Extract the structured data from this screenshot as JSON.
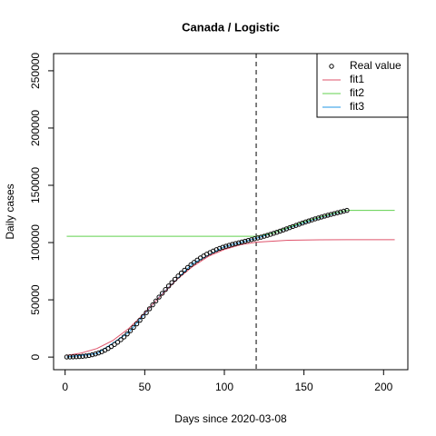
{
  "chart_data": {
    "type": "scatter",
    "title": "Canada / Logistic",
    "xlabel": "Days since 2020-03-08",
    "ylabel": "Daily cases",
    "xlim": [
      -7.24,
      215.24
    ],
    "ylim": [
      -11000,
      265000
    ],
    "xticks": [
      0,
      50,
      100,
      150,
      200
    ],
    "yticks": [
      0,
      50000,
      100000,
      150000,
      200000,
      250000
    ],
    "vline": 120,
    "legend": "top-right",
    "series": [
      {
        "name": "Real value",
        "kind": "points",
        "color": "#000000",
        "x": [
          1,
          3,
          5,
          7,
          9,
          11,
          13,
          15,
          17,
          19,
          21,
          23,
          25,
          27,
          29,
          31,
          33,
          35,
          37,
          39,
          41,
          43,
          45,
          47,
          49,
          51,
          53,
          55,
          57,
          59,
          61,
          63,
          65,
          67,
          69,
          71,
          73,
          75,
          77,
          79,
          81,
          83,
          85,
          87,
          89,
          91,
          93,
          95,
          97,
          99,
          101,
          103,
          105,
          107,
          109,
          111,
          113,
          115,
          117,
          119,
          121,
          123,
          125,
          127,
          129,
          131,
          133,
          135,
          137,
          139,
          141,
          143,
          145,
          147,
          149,
          151,
          153,
          155,
          157,
          159,
          161,
          163,
          165,
          167,
          169,
          171,
          173,
          175,
          177
        ],
        "values": [
          100,
          150,
          200,
          300,
          450,
          700,
          1000,
          1400,
          2000,
          2700,
          3600,
          4700,
          6000,
          7500,
          9200,
          11000,
          13000,
          15200,
          17600,
          20200,
          23000,
          26000,
          29000,
          32200,
          35500,
          38800,
          42200,
          45600,
          49000,
          52400,
          55700,
          59000,
          62100,
          65100,
          68000,
          70800,
          73400,
          75900,
          78300,
          80600,
          82700,
          84700,
          86600,
          88300,
          89900,
          91300,
          92600,
          93800,
          94900,
          95900,
          96800,
          97600,
          98400,
          99100,
          99800,
          100500,
          101200,
          101900,
          102600,
          103300,
          104000,
          104700,
          105500,
          106300,
          107200,
          108100,
          109000,
          110000,
          111000,
          112000,
          113000,
          114000,
          115000,
          116000,
          117000,
          118000,
          118900,
          119800,
          120700,
          121500,
          122300,
          123100,
          123900,
          124600,
          125300,
          126000,
          126700,
          127400,
          128100
        ]
      },
      {
        "name": "fit1",
        "kind": "line",
        "color": "#DF536B",
        "x": [
          1,
          10,
          20,
          30,
          40,
          50,
          60,
          70,
          80,
          90,
          100,
          110,
          120,
          140,
          160,
          180,
          207
        ],
        "values": [
          1500,
          3500,
          7500,
          14500,
          25000,
          38500,
          53500,
          67500,
          79000,
          88000,
          94000,
          98000,
          100300,
          102000,
          102400,
          102500,
          102500
        ]
      },
      {
        "name": "fit2",
        "kind": "line",
        "color": "#61D04F",
        "x": [
          1,
          120,
          130,
          140,
          150,
          160,
          170,
          177,
          207
        ],
        "values": [
          105500,
          105500,
          108000,
          113000,
          118000,
          122300,
          126000,
          128100,
          128100
        ]
      },
      {
        "name": "fit3",
        "kind": "line",
        "color": "#2297E6",
        "x": [
          1,
          20,
          40,
          60,
          80,
          100,
          120,
          140,
          160,
          177
        ],
        "values": [
          100,
          3000,
          21500,
          54000,
          81600,
          96400,
          103700,
          112500,
          121900,
          128100
        ]
      }
    ]
  }
}
